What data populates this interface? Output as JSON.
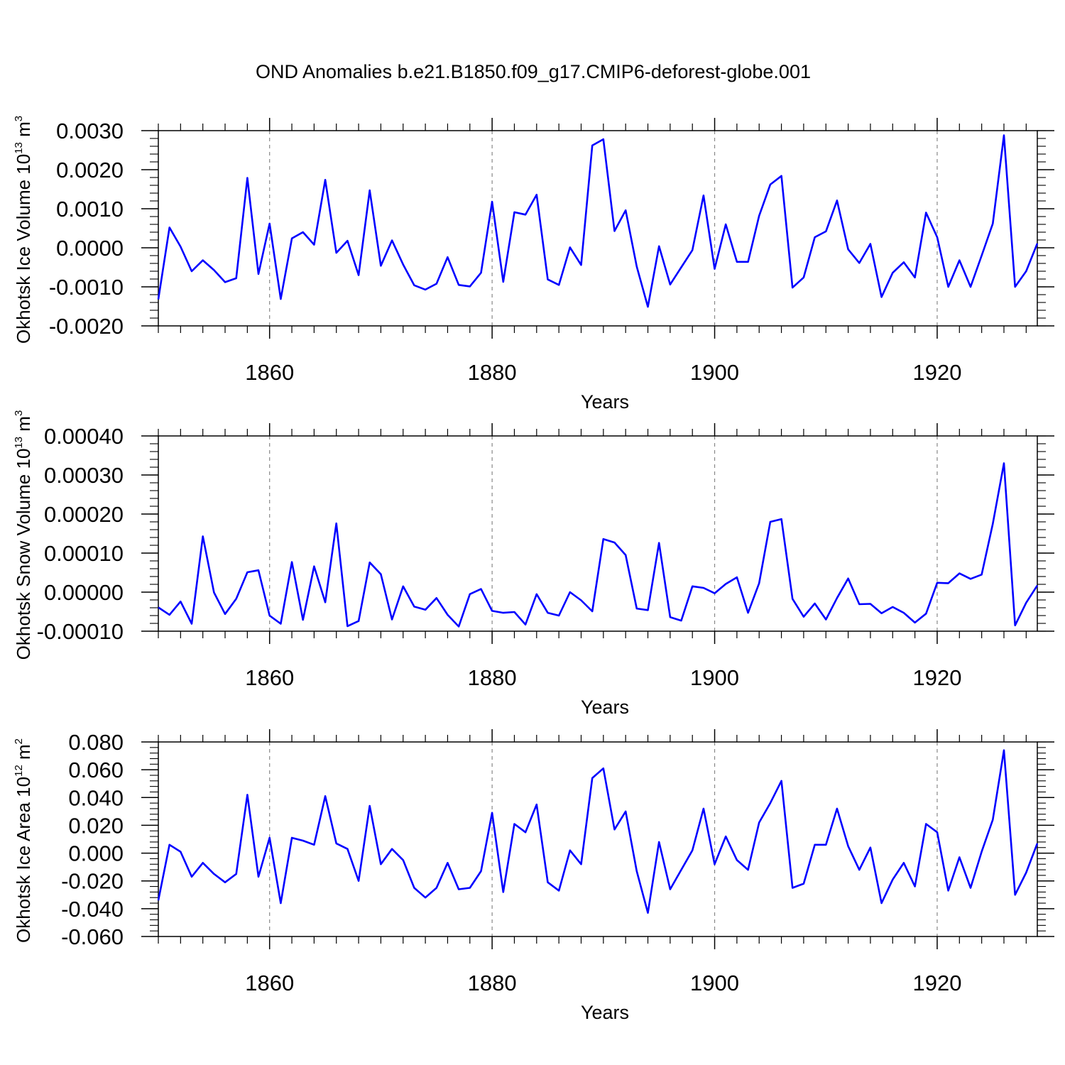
{
  "title": "OND Anomalies b.e21.B1850.f09_g17.CMIP6-deforest-globe.001",
  "colors": {
    "line": "#0000ff",
    "axis": "#000000",
    "grid": "#888888"
  },
  "chart_data": [
    {
      "type": "line",
      "ylabel_main": "Okhotsk Ice Volume 10",
      "ylabel_exp": "13",
      "ylabel_unit": " m",
      "ylabel_unit_exp": "3",
      "xlabel": "Years",
      "xlim": [
        1850,
        1929
      ],
      "ylim": [
        -0.002,
        0.003
      ],
      "yticks": [
        -0.002,
        -0.001,
        0.0,
        0.001,
        0.002,
        0.003
      ],
      "ytick_labels": [
        "-0.0020",
        "-0.0010",
        "0.0000",
        "0.0010",
        "0.0020",
        "0.0030"
      ],
      "yminor_step": 0.0002,
      "xticks": [
        1860,
        1880,
        1900,
        1920
      ],
      "xtick_labels": [
        "1860",
        "1880",
        "1900",
        "1920"
      ],
      "start_year": 1850,
      "series": [
        {
          "name": "Okhotsk Ice Volume",
          "values": [
            -0.00132,
            0.00052,
            3e-05,
            -0.0006,
            -0.00032,
            -0.00057,
            -0.00088,
            -0.00078,
            0.00179,
            -0.00067,
            0.00062,
            -0.00131,
            0.00024,
            0.0004,
            8e-05,
            0.00174,
            -0.00013,
            0.00018,
            -0.0007,
            0.00147,
            -0.00046,
            0.00019,
            -0.00043,
            -0.00096,
            -0.00107,
            -0.00092,
            -0.00024,
            -0.00095,
            -0.00099,
            -0.00064,
            0.00118,
            -0.00087,
            0.00091,
            0.00085,
            0.00136,
            -0.00081,
            -0.00095,
            1e-05,
            -0.00044,
            0.00262,
            0.00278,
            0.00043,
            0.00096,
            -0.00048,
            -0.00151,
            4e-05,
            -0.00094,
            -0.0005,
            -6e-05,
            0.00134,
            -0.00054,
            0.0006,
            -0.00036,
            -0.00036,
            0.00082,
            0.00162,
            0.00184,
            -0.00102,
            -0.00076,
            0.00027,
            0.00042,
            0.00121,
            -4e-05,
            -0.00039,
            0.0001,
            -0.00126,
            -0.00064,
            -0.00037,
            -0.00076,
            0.0009,
            0.00027,
            -0.001,
            -0.00032,
            -0.001,
            -0.0002,
            0.00062,
            0.00288,
            -0.001,
            -0.0006,
            0.00011
          ]
        }
      ]
    },
    {
      "type": "line",
      "ylabel_main": "Okhotsk Snow Volume 10",
      "ylabel_exp": "13",
      "ylabel_unit": " m",
      "ylabel_unit_exp": "3",
      "xlabel": "Years",
      "xlim": [
        1850,
        1929
      ],
      "ylim": [
        -0.0001,
        0.0004
      ],
      "yticks": [
        -0.0001,
        0.0,
        0.0001,
        0.0002,
        0.0003,
        0.0004
      ],
      "ytick_labels": [
        "-0.00010",
        "0.00000",
        "0.00010",
        "0.00020",
        "0.00030",
        "0.00040"
      ],
      "yminor_step": 2e-05,
      "xticks": [
        1860,
        1880,
        1900,
        1920
      ],
      "xtick_labels": [
        "1860",
        "1880",
        "1900",
        "1920"
      ],
      "start_year": 1850,
      "series": [
        {
          "name": "Okhotsk Snow Volume",
          "values": [
            -3.9e-05,
            -5.8e-05,
            -2.4e-05,
            -8.1e-05,
            0.000143,
            -1e-06,
            -5.6e-05,
            -1.7e-05,
            5.1e-05,
            5.6e-05,
            -6e-05,
            -8.1e-05,
            7.7e-05,
            -7.1e-05,
            6.6e-05,
            -2.6e-05,
            0.000176,
            -8.7e-05,
            -7.4e-05,
            7.6e-05,
            4.6e-05,
            -7e-05,
            1.5e-05,
            -3.7e-05,
            -4.5e-05,
            -1.5e-05,
            -5.8e-05,
            -8.8e-05,
            -5e-06,
            8e-06,
            -4.8e-05,
            -5.3e-05,
            -5.1e-05,
            -8.3e-05,
            -5e-06,
            -5.3e-05,
            -6e-05,
            0.0,
            -2.1e-05,
            -4.9e-05,
            0.000136,
            0.000127,
            9.5e-05,
            -4.2e-05,
            -4.6e-05,
            0.000126,
            -6.4e-05,
            -7.3e-05,
            1.5e-05,
            1.1e-05,
            -3e-06,
            2.1e-05,
            3.8e-05,
            -5.3e-05,
            2.3e-05,
            0.00018,
            0.000187,
            -1.7e-05,
            -6.3e-05,
            -2.9e-05,
            -7e-05,
            -1.5e-05,
            3.5e-05,
            -3.1e-05,
            -3e-05,
            -5.4e-05,
            -3.8e-05,
            -5.3e-05,
            -7.8e-05,
            -5.5e-05,
            2.4e-05,
            2.3e-05,
            4.8e-05,
            3.4e-05,
            4.5e-05,
            0.000175,
            0.00033,
            -8.5e-05,
            -2.7e-05,
            1.7e-05
          ]
        }
      ]
    },
    {
      "type": "line",
      "ylabel_main": "Okhotsk Ice Area 10",
      "ylabel_exp": "12",
      "ylabel_unit": " m",
      "ylabel_unit_exp": "2",
      "xlabel": "Years",
      "xlim": [
        1850,
        1929
      ],
      "ylim": [
        -0.06,
        0.08
      ],
      "yticks": [
        -0.06,
        -0.04,
        -0.02,
        0.0,
        0.02,
        0.04,
        0.06,
        0.08
      ],
      "ytick_labels": [
        "-0.060",
        "-0.040",
        "-0.020",
        "0.000",
        "0.020",
        "0.040",
        "0.060",
        "0.080"
      ],
      "yminor_step": 0.004,
      "xticks": [
        1860,
        1880,
        1900,
        1920
      ],
      "xtick_labels": [
        "1860",
        "1880",
        "1900",
        "1920"
      ],
      "start_year": 1850,
      "series": [
        {
          "name": "Okhotsk Ice Area",
          "values": [
            -0.034,
            0.006,
            0.001,
            -0.017,
            -0.007,
            -0.015,
            -0.021,
            -0.015,
            0.042,
            -0.017,
            0.011,
            -0.036,
            0.011,
            0.009,
            0.006,
            0.041,
            0.007,
            0.003,
            -0.02,
            0.034,
            -0.008,
            0.003,
            -0.005,
            -0.025,
            -0.032,
            -0.025,
            -0.007,
            -0.026,
            -0.025,
            -0.013,
            0.029,
            -0.028,
            0.021,
            0.015,
            0.035,
            -0.021,
            -0.027,
            0.002,
            -0.008,
            0.054,
            0.061,
            0.017,
            0.03,
            -0.013,
            -0.043,
            0.008,
            -0.026,
            -0.012,
            0.002,
            0.032,
            -0.008,
            0.012,
            -0.005,
            -0.012,
            0.022,
            0.036,
            0.052,
            -0.025,
            -0.022,
            0.006,
            0.006,
            0.032,
            0.005,
            -0.012,
            0.004,
            -0.036,
            -0.019,
            -0.007,
            -0.024,
            0.021,
            0.015,
            -0.027,
            -0.003,
            -0.025,
            0.001,
            0.024,
            0.074,
            -0.03,
            -0.014,
            0.007
          ]
        }
      ]
    }
  ]
}
